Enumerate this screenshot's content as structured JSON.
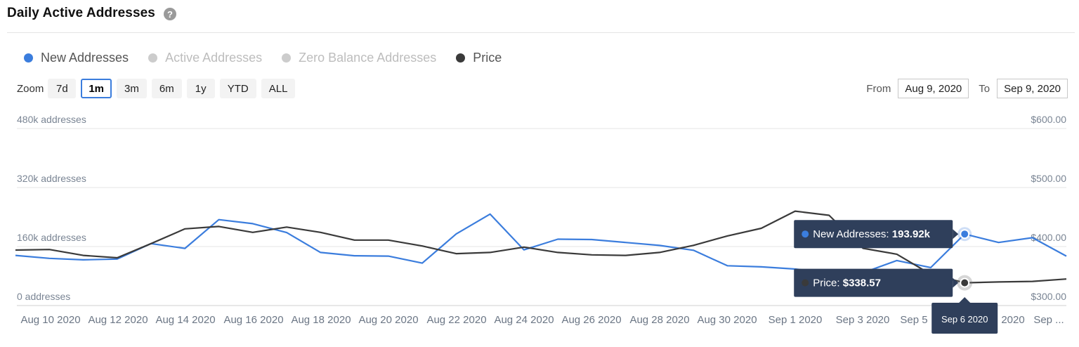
{
  "header": {
    "title": "Daily Active Addresses",
    "help_icon": "?"
  },
  "legend": [
    {
      "label": "New Addresses",
      "color": "#3b7ddd",
      "active": true
    },
    {
      "label": "Active Addresses",
      "color": "#cccccc",
      "active": false
    },
    {
      "label": "Zero Balance Addresses",
      "color": "#cccccc",
      "active": false
    },
    {
      "label": "Price",
      "color": "#3a3a3a",
      "active": true
    }
  ],
  "zoom": {
    "label": "Zoom",
    "buttons": [
      "7d",
      "1m",
      "3m",
      "6m",
      "1y",
      "YTD",
      "ALL"
    ],
    "selected": "1m"
  },
  "range": {
    "from_label": "From",
    "from_value": "Aug 9, 2020",
    "to_label": "To",
    "to_value": "Sep 9, 2020"
  },
  "chart_data": {
    "type": "line",
    "x": [
      "Aug 9 2020",
      "Aug 10 2020",
      "Aug 11 2020",
      "Aug 12 2020",
      "Aug 13 2020",
      "Aug 14 2020",
      "Aug 15 2020",
      "Aug 16 2020",
      "Aug 17 2020",
      "Aug 18 2020",
      "Aug 19 2020",
      "Aug 20 2020",
      "Aug 21 2020",
      "Aug 22 2020",
      "Aug 23 2020",
      "Aug 24 2020",
      "Aug 25 2020",
      "Aug 26 2020",
      "Aug 27 2020",
      "Aug 28 2020",
      "Aug 29 2020",
      "Aug 30 2020",
      "Aug 31 2020",
      "Sep 1 2020",
      "Sep 2 2020",
      "Sep 3 2020",
      "Sep 4 2020",
      "Sep 5 2020",
      "Sep 6 2020",
      "Sep 7 2020",
      "Sep 8 2020",
      "Sep 9 2020"
    ],
    "x_tick_labels": [
      "Aug 10 2020",
      "Aug 12 2020",
      "Aug 14 2020",
      "Aug 16 2020",
      "Aug 18 2020",
      "Aug 20 2020",
      "Aug 22 2020",
      "Aug 24 2020",
      "Aug 26 2020",
      "Aug 28 2020",
      "Aug 30 2020",
      "Sep 1 2020",
      "Sep 3 2020",
      "Sep 5",
      "2020",
      "Sep ..."
    ],
    "series": [
      {
        "name": "New Addresses",
        "axis": "left",
        "color": "#3b7ddd",
        "values": [
          136000,
          128000,
          124000,
          126000,
          168000,
          155000,
          233000,
          222000,
          198000,
          144000,
          135000,
          134000,
          115000,
          194000,
          248000,
          151000,
          180000,
          179000,
          171000,
          163000,
          150000,
          108000,
          105000,
          99000,
          89000,
          89000,
          122000,
          103000,
          193920,
          171000,
          184000,
          134000
        ]
      },
      {
        "name": "Price",
        "axis": "right",
        "color": "#3a3a3a",
        "values": [
          394,
          395,
          385,
          381,
          405,
          430,
          434,
          424,
          433,
          424,
          411,
          411,
          401,
          388,
          390,
          399,
          390,
          386,
          385,
          390,
          402,
          418,
          431,
          460,
          453,
          397,
          387,
          353,
          338.57,
          340,
          341,
          345
        ]
      }
    ],
    "y_left": {
      "ticks": [
        "0 addresses",
        "160k addresses",
        "320k addresses",
        "480k addresses"
      ],
      "ylim": [
        0,
        480000
      ]
    },
    "y_right": {
      "ticks": [
        "$300.00",
        "$400.00",
        "$500.00",
        "$600.00"
      ],
      "ylim": [
        300,
        600
      ]
    },
    "grid": true,
    "tooltip": {
      "date": "Sep 6 2020",
      "new_addresses_label": "New Addresses:",
      "new_addresses_value": "193.92k",
      "price_label": "Price:",
      "price_value": "$338.57",
      "index": 28
    }
  }
}
